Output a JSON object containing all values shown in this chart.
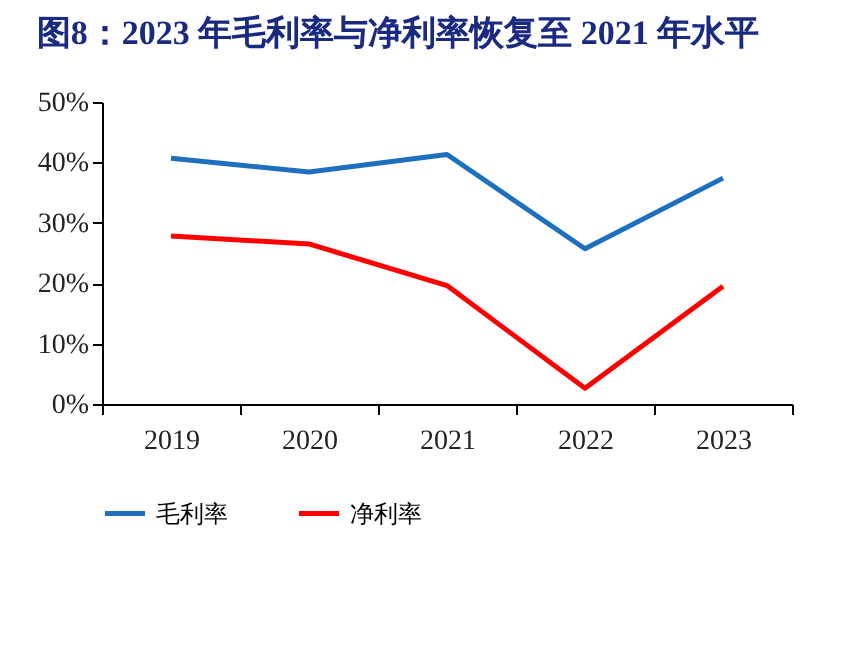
{
  "chart_data": {
    "type": "line",
    "title": "图8：2023 年毛利率与净利率恢复至 2021 年水平",
    "categories": [
      "2019",
      "2020",
      "2021",
      "2022",
      "2023"
    ],
    "series": [
      {
        "name": "毛利率",
        "color": "#1f6fbf",
        "values": [
          40.7,
          38.4,
          41.3,
          25.7,
          37.4
        ]
      },
      {
        "name": "净利率",
        "color": "#ff0000",
        "values": [
          27.8,
          26.5,
          19.6,
          2.6,
          19.5
        ]
      }
    ],
    "ylim": [
      0,
      50
    ],
    "yticks": [
      {
        "value": 0,
        "label": "0%"
      },
      {
        "value": 10,
        "label": "10%"
      },
      {
        "value": 20,
        "label": "20%"
      },
      {
        "value": 30,
        "label": "30%"
      },
      {
        "value": 40,
        "label": "40%"
      },
      {
        "value": 50,
        "label": "50%"
      }
    ],
    "grid": false,
    "legend": "bottom",
    "marker": "none",
    "line_style": "solid"
  }
}
